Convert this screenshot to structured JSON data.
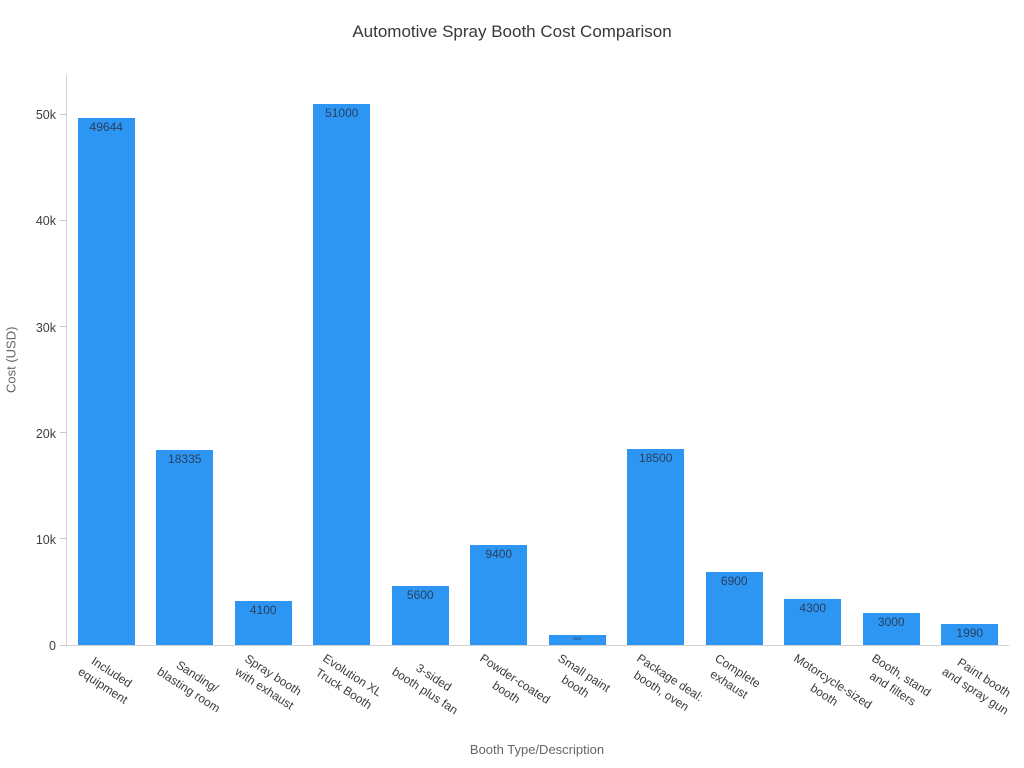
{
  "chart_data": {
    "type": "bar",
    "title": "Automotive Spray Booth Cost Comparison",
    "xlabel": "Booth Type/Description",
    "ylabel": "Cost (USD)",
    "ylim": [
      0,
      53700
    ],
    "grid": false,
    "legend": false,
    "bar_color": "#2D96F2",
    "value_label_color": "#2a3f5f",
    "yticks": [
      {
        "value": 0,
        "label": "0"
      },
      {
        "value": 10000,
        "label": "10k"
      },
      {
        "value": 20000,
        "label": "20k"
      },
      {
        "value": 30000,
        "label": "30k"
      },
      {
        "value": 40000,
        "label": "40k"
      },
      {
        "value": 50000,
        "label": "50k"
      }
    ],
    "categories": [
      "Included\nequipment",
      "Sanding/\nblasting room",
      "Spray booth\nwith exhaust",
      "Evolution XL\nTruck Booth",
      "3-sided\nbooth plus fan",
      "Powder-coated\nbooth",
      "Small paint\nbooth",
      "Package deal:\nbooth, oven",
      "Complete\nexhaust",
      "Motorcycle-sized\nbooth",
      "Booth, stand\nand filters",
      "Paint booth\nand spray gun"
    ],
    "values": [
      49644,
      18335,
      4100,
      51000,
      5600,
      9400,
      900,
      18500,
      6900,
      4300,
      3000,
      1990
    ]
  }
}
